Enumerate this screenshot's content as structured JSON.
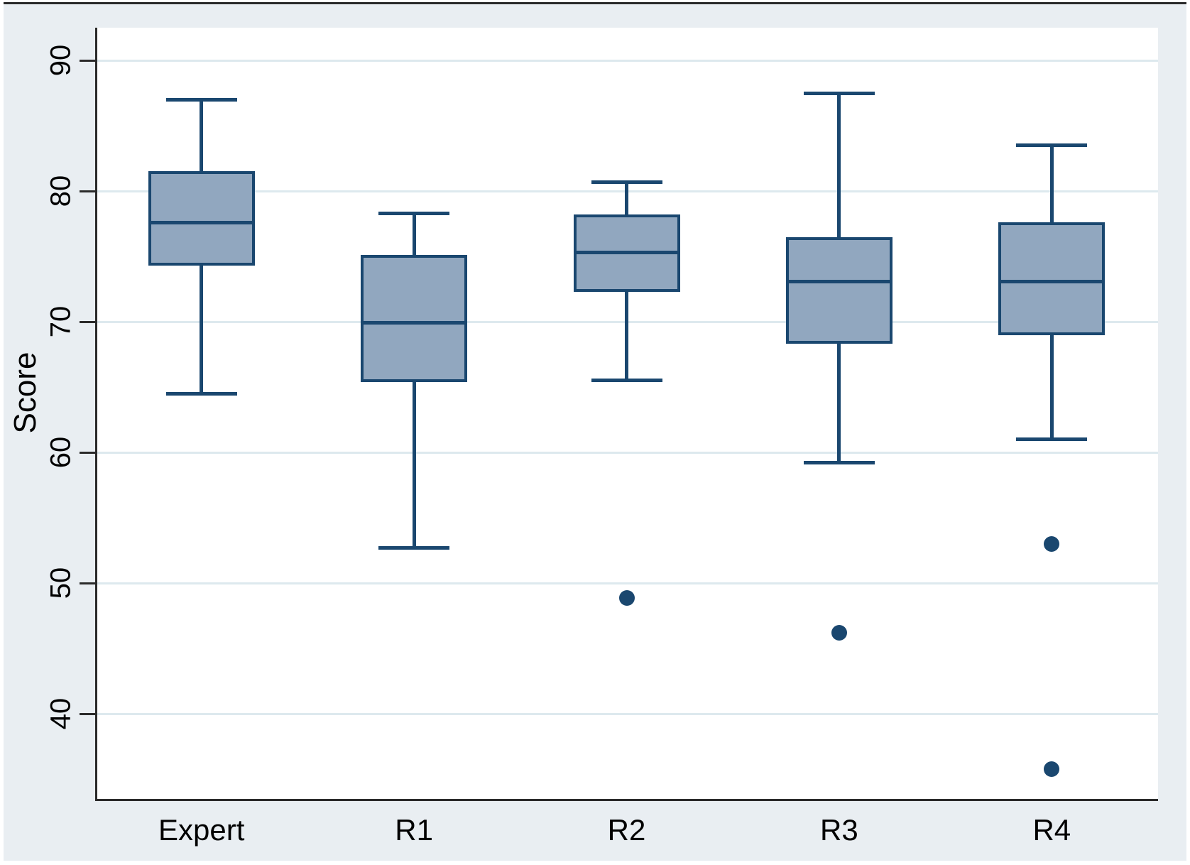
{
  "figure": {
    "canvas_background": "#e9eef2",
    "plot_background": "#ffffff",
    "grid_color": "#dde9ee",
    "axis_color": "#2a2a2a",
    "text_color": "#000000",
    "box_fill": "#91a7bf",
    "box_stroke": "#1a476f",
    "outlier_color": "#1a476f"
  },
  "chart_data": {
    "type": "boxplot",
    "title": "",
    "xlabel": "",
    "ylabel": "Score",
    "categories": [
      "Expert",
      "R1",
      "R2",
      "R3",
      "R4"
    ],
    "y_ticks": [
      40,
      50,
      60,
      70,
      80,
      90
    ],
    "ylim": [
      33.5,
      92.5
    ],
    "grid": true,
    "legend": "none",
    "boxes": [
      {
        "category": "Expert",
        "whisker_low": 64.5,
        "q1": 74.3,
        "median": 77.6,
        "q3": 81.5,
        "whisker_high": 87.0,
        "outliers": []
      },
      {
        "category": "R1",
        "whisker_low": 52.7,
        "q1": 65.4,
        "median": 69.9,
        "q3": 75.1,
        "whisker_high": 78.3,
        "outliers": []
      },
      {
        "category": "R2",
        "whisker_low": 65.5,
        "q1": 72.3,
        "median": 75.3,
        "q3": 78.2,
        "whisker_high": 80.7,
        "outliers": [
          48.9
        ]
      },
      {
        "category": "R3",
        "whisker_low": 59.2,
        "q1": 68.3,
        "median": 73.1,
        "q3": 76.5,
        "whisker_high": 87.5,
        "outliers": [
          46.2
        ]
      },
      {
        "category": "R4",
        "whisker_low": 61.0,
        "q1": 69.0,
        "median": 73.1,
        "q3": 77.6,
        "whisker_high": 83.5,
        "outliers": [
          53.0,
          35.8
        ]
      }
    ]
  }
}
